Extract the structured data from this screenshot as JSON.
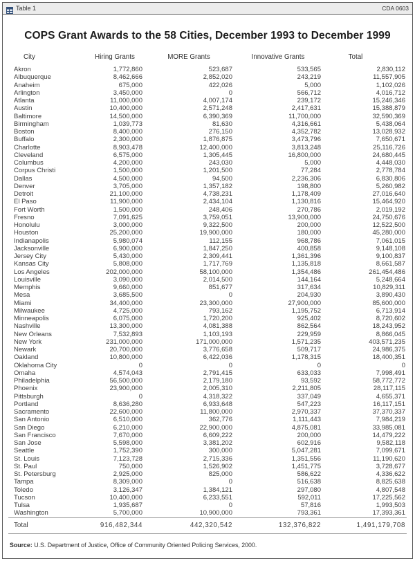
{
  "window": {
    "titlebar": {
      "title": "Table 1",
      "code": "CDA 0603"
    }
  },
  "table": {
    "title": "COPS Grant Awards to the 58 Cities, December 1993 to December 1999",
    "columns": [
      "City",
      "Hiring Grants",
      "MORE Grants",
      "Innovative Grants",
      "Total"
    ],
    "rows": [
      [
        "Akron",
        "1,772,860",
        "523,687",
        "533,565",
        "2,830,112"
      ],
      [
        "Albuquerque",
        "8,462,666",
        "2,852,020",
        "243,219",
        "11,557,905"
      ],
      [
        "Anaheim",
        "675,000",
        "422,026",
        "5,000",
        "1,102,026"
      ],
      [
        "Arlington",
        "3,450,000",
        "0",
        "566,712",
        "4,016,712"
      ],
      [
        "Atlanta",
        "11,000,000",
        "4,007,174",
        "239,172",
        "15,246,346"
      ],
      [
        "Austin",
        "10,400,000",
        "2,571,248",
        "2,417,631",
        "15,388,879"
      ],
      [
        "Baltimore",
        "14,500,000",
        "6,390,369",
        "11,700,000",
        "32,590,369"
      ],
      [
        "Birmingham",
        "1,039,773",
        "81,630",
        "4,316,661",
        "5,438,064"
      ],
      [
        "Boston",
        "8,400,000",
        "276,150",
        "4,352,782",
        "13,028,932"
      ],
      [
        "Buffalo",
        "2,300,000",
        "1,876,875",
        "3,473,796",
        "7,650,671"
      ],
      [
        "Charlotte",
        "8,903,478",
        "12,400,000",
        "3,813,248",
        "25,116,726"
      ],
      [
        "Cleveland",
        "6,575,000",
        "1,305,445",
        "16,800,000",
        "24,680,445"
      ],
      [
        "Columbus",
        "4,200,000",
        "243,030",
        "5,000",
        "4,448,030"
      ],
      [
        "Corpus Christi",
        "1,500,000",
        "1,201,500",
        "77,284",
        "2,778,784"
      ],
      [
        "Dallas",
        "4,500,000",
        "94,500",
        "2,236,306",
        "6,830,806"
      ],
      [
        "Denver",
        "3,705,000",
        "1,357,182",
        "198,800",
        "5,260,982"
      ],
      [
        "Detroit",
        "21,100,000",
        "4,738,231",
        "1,178,409",
        "27,016,640"
      ],
      [
        "El Paso",
        "11,900,000",
        "2,434,104",
        "1,130,816",
        "15,464,920"
      ],
      [
        "Fort Worth",
        "1,500,000",
        "248,406",
        "270,786",
        "2,019,192"
      ],
      [
        "Fresno",
        "7,091,625",
        "3,759,051",
        "13,900,000",
        "24,750,676"
      ],
      [
        "Honolulu",
        "3,000,000",
        "9,322,500",
        "200,000",
        "12,522,500"
      ],
      [
        "Houston",
        "25,200,000",
        "19,900,000",
        "180,000",
        "45,280,000"
      ],
      [
        "Indianapolis",
        "5,980,074",
        "112,155",
        "968,786",
        "7,061,015"
      ],
      [
        "Jacksonville",
        "6,900,000",
        "1,847,250",
        "400,858",
        "9,148,108"
      ],
      [
        "Jersey City",
        "5,430,000",
        "2,309,441",
        "1,361,396",
        "9,100,837"
      ],
      [
        "Kansas City",
        "5,808,000",
        "1,717,769",
        "1,135,818",
        "8,661,587"
      ],
      [
        "Los Angeles",
        "202,000,000",
        "58,100,000",
        "1,354,486",
        "261,454,486"
      ],
      [
        "Louisville",
        "3,090,000",
        "2,014,500",
        "144,164",
        "5,248,664"
      ],
      [
        "Memphis",
        "9,660,000",
        "851,677",
        "317,634",
        "10,829,311"
      ],
      [
        "Mesa",
        "3,685,500",
        "0",
        "204,930",
        "3,890,430"
      ],
      [
        "Miami",
        "34,400,000",
        "23,300,000",
        "27,900,000",
        "85,600,000"
      ],
      [
        "Milwaukee",
        "4,725,000",
        "793,162",
        "1,195,752",
        "6,713,914"
      ],
      [
        "Minneapolis",
        "6,075,000",
        "1,720,200",
        "925,402",
        "8,720,602"
      ],
      [
        "Nashville",
        "13,300,000",
        "4,081,388",
        "862,564",
        "18,243,952"
      ],
      [
        "New Orleans",
        "7,532,893",
        "1,103,193",
        "229,959",
        "8,866,045"
      ],
      [
        "New York",
        "231,000,000",
        "171,000,000",
        "1,571,235",
        "403,571,235"
      ],
      [
        "Newark",
        "20,700,000",
        "3,776,658",
        "509,717",
        "24,986,375"
      ],
      [
        "Oakland",
        "10,800,000",
        "6,422,036",
        "1,178,315",
        "18,400,351"
      ],
      [
        "Oklahoma City",
        "0",
        "0",
        "0",
        "0"
      ],
      [
        "Omaha",
        "4,574,043",
        "2,791,415",
        "633,033",
        "7,998,491"
      ],
      [
        "Philadelphia",
        "56,500,000",
        "2,179,180",
        "93,592",
        "58,772,772"
      ],
      [
        "Phoenix",
        "23,900,000",
        "2,005,310",
        "2,211,805",
        "28,117,115"
      ],
      [
        "Pittsburgh",
        "0",
        "4,318,322",
        "337,049",
        "4,655,371"
      ],
      [
        "Portland",
        "8,636,280",
        "6,933,648",
        "547,223",
        "16,117,151"
      ],
      [
        "Sacramento",
        "22,600,000",
        "11,800,000",
        "2,970,337",
        "37,370,337"
      ],
      [
        "San Antonio",
        "6,510,000",
        "362,776",
        "1,111,443",
        "7,984,219"
      ],
      [
        "San Diego",
        "6,210,000",
        "22,900,000",
        "4,875,081",
        "33,985,081"
      ],
      [
        "San Francisco",
        "7,670,000",
        "6,609,222",
        "200,000",
        "14,479,222"
      ],
      [
        "San Jose",
        "5,598,000",
        "3,381,202",
        "602,916",
        "9,582,118"
      ],
      [
        "Seattle",
        "1,752,390",
        "300,000",
        "5,047,281",
        "7,099,671"
      ],
      [
        "St. Louis",
        "7,123,728",
        "2,715,336",
        "1,351,556",
        "11,190,620"
      ],
      [
        "St. Paul",
        "750,000",
        "1,526,902",
        "1,451,775",
        "3,728,677"
      ],
      [
        "St. Petersburg",
        "2,925,000",
        "825,000",
        "586,622",
        "4,336,622"
      ],
      [
        "Tampa",
        "8,309,000",
        "0",
        "516,638",
        "8,825,638"
      ],
      [
        "Toledo",
        "3,126,347",
        "1,384,121",
        "297,080",
        "4,807,548"
      ],
      [
        "Tucson",
        "10,400,000",
        "6,233,551",
        "592,011",
        "17,225,562"
      ],
      [
        "Tulsa",
        "1,935,687",
        "0",
        "57,816",
        "1,993,503"
      ],
      [
        "Washington",
        "5,700,000",
        "10,900,000",
        "793,361",
        "17,393,361"
      ]
    ],
    "total_row": [
      "Total",
      "916,482,344",
      "442,320,542",
      "132,376,822",
      "1,491,179,708"
    ],
    "source_label": "Source:",
    "source_text": "U.S. Department of Justice, Office of Community Oriented Policing Services, 2000."
  }
}
